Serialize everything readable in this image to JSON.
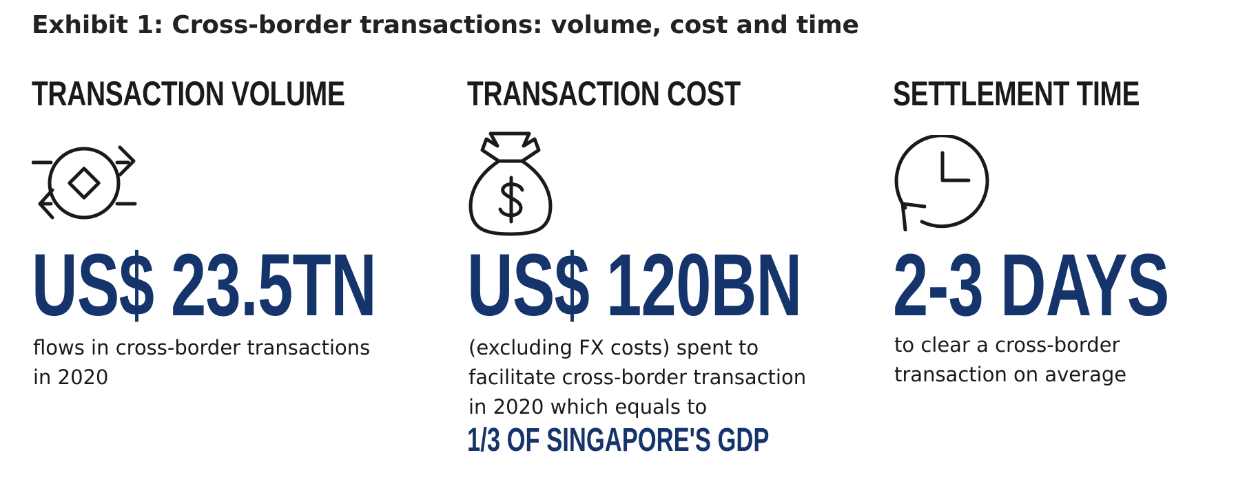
{
  "exhibit": {
    "title": "Exhibit 1: Cross-border transactions: volume, cost and time"
  },
  "volume": {
    "heading": "TRANSACTION VOLUME",
    "icon": "currency-exchange-icon",
    "value": "US$ 23.5TN",
    "description_line1": "flows in cross-border transactions",
    "description_line2": "in 2020"
  },
  "cost": {
    "heading": "TRANSACTION COST",
    "icon": "money-bag-icon",
    "value": "US$ 120BN",
    "description_line1": "(excluding FX costs) spent to",
    "description_line2": "facilitate cross-border transaction",
    "description_line3": "in 2020 which equals to",
    "highlight": "1/3 OF SINGAPORE'S GDP"
  },
  "time": {
    "heading": "SETTLEMENT TIME",
    "icon": "clock-icon",
    "value": "2-3 DAYS",
    "description_line1": "to clear a cross-border",
    "description_line2": "transaction on average"
  },
  "colors": {
    "accent": "#15346b",
    "text": "#1a1a1a"
  }
}
